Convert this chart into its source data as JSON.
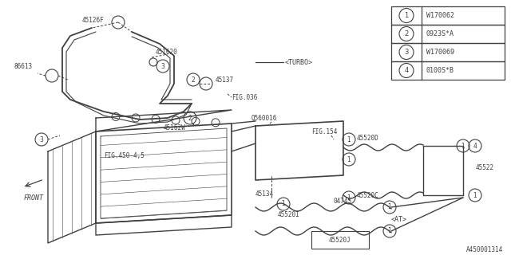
{
  "bg_color": "#ffffff",
  "line_color": "#404040",
  "text_color": "#404040",
  "legend_items": [
    {
      "num": "1",
      "code": "W170062"
    },
    {
      "num": "2",
      "code": "0923S*A"
    },
    {
      "num": "3",
      "code": "W170069"
    },
    {
      "num": "4",
      "code": "0100S*B"
    }
  ],
  "diagram_id": "A450001314"
}
